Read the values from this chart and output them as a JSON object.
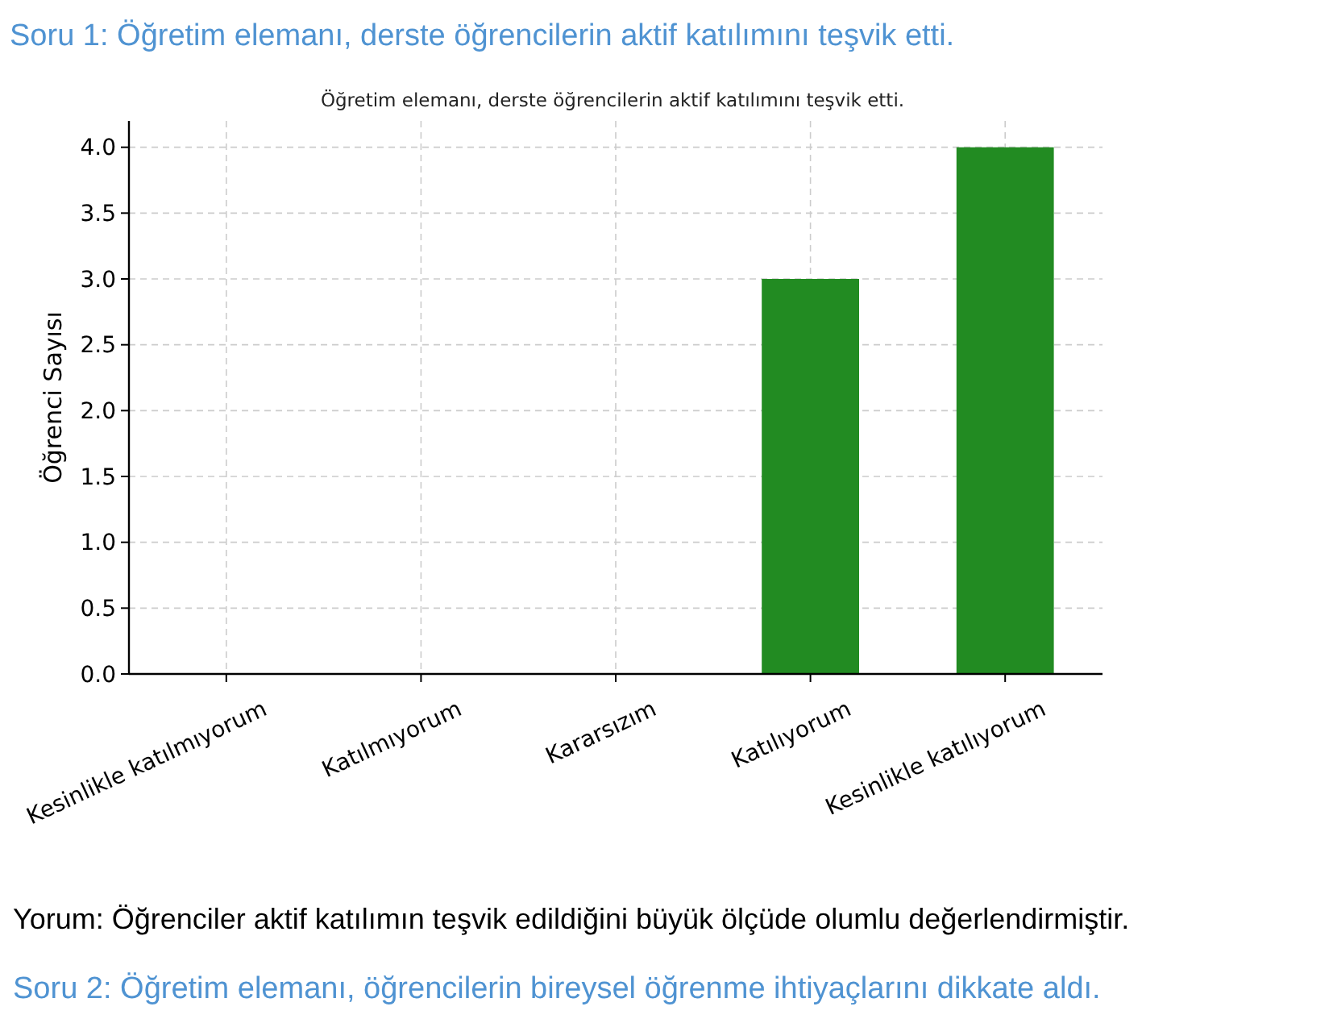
{
  "chart_data": {
    "type": "bar",
    "title": "Öğretim elemanı, derste öğrencilerin aktif katılımını teşvik etti.",
    "ylabel": "Öğrenci Sayısı",
    "categories": [
      "Kesinlikle katılmıyorum",
      "Katılmıyorum",
      "Kararsızım",
      "Katılıyorum",
      "Kesinlikle katılıyorum"
    ],
    "values": [
      0,
      0,
      0,
      3,
      4
    ],
    "color": "#228b22",
    "ylim": [
      0,
      4.2
    ],
    "yticks": [
      {
        "value": 0,
        "label": "0.0"
      },
      {
        "value": 0.5,
        "label": "0.5"
      },
      {
        "value": 1,
        "label": "1.0"
      },
      {
        "value": 1.5,
        "label": "1.5"
      },
      {
        "value": 2,
        "label": "2.0"
      },
      {
        "value": 2.5,
        "label": "2.5"
      },
      {
        "value": 3,
        "label": "3.0"
      },
      {
        "value": 3.5,
        "label": "3.5"
      },
      {
        "value": 4,
        "label": "4.0"
      }
    ],
    "grid": true,
    "annotations": [
      "Soru 1: Öğretim elemanı, derste öğrencilerin aktif katılımını teşvik etti.",
      "Yorum: Öğrenciler aktif katılımın teşvik edildiğini büyük ölçüde olumlu değerlendirmiştir.",
      "Soru 2: Öğretim elemanı, öğrencilerin bireysel öğrenme ihtiyaçlarını dikkate aldı."
    ]
  }
}
